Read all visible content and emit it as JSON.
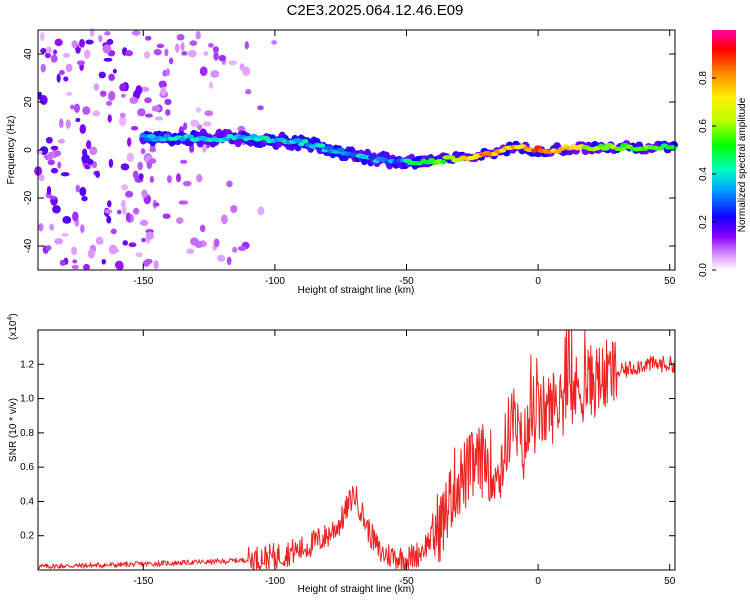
{
  "title": "C2E3.2025.064.12.46.E09",
  "chart_data": [
    {
      "type": "heatmap",
      "xlabel": "Height of straight line (km)",
      "ylabel": "Frequency (Hz)",
      "xlim": [
        -190,
        52
      ],
      "ylim": [
        -50,
        50
      ],
      "x_ticks": [
        -150,
        -100,
        -50,
        0,
        50
      ],
      "y_ticks": [
        -40,
        -20,
        0,
        20,
        40
      ],
      "colorbar": {
        "label": "Normalized spectral amplitude",
        "range": [
          0,
          1
        ],
        "ticks": [
          "0.0",
          "0.2",
          "0.4",
          "0.6",
          "0.8"
        ],
        "tick_values": [
          0.0,
          0.2,
          0.4,
          0.6,
          0.8
        ],
        "colors": [
          "#ffffff",
          "#cc55ff",
          "#5500ff",
          "#0000ff",
          "#00ccff",
          "#00ff66",
          "#99ff00",
          "#ffff00",
          "#ff8800",
          "#ff0000",
          "#ff00cc"
        ]
      },
      "ridge": {
        "x": [
          -150,
          -130,
          -110,
          -90,
          -70,
          -55,
          -45,
          -35,
          -20,
          -10,
          0,
          20,
          52
        ],
        "freq": [
          5,
          5,
          5,
          3,
          -2,
          -5,
          -5,
          -4,
          -2,
          1,
          0,
          1,
          1
        ],
        "amplitude": [
          0.35,
          0.4,
          0.4,
          0.38,
          0.35,
          0.3,
          0.45,
          0.6,
          0.8,
          0.75,
          0.85,
          0.6,
          0.5
        ]
      }
    },
    {
      "type": "line",
      "xlabel": "Height of straight line (km)",
      "ylabel": "SNR (10 * v/v)",
      "y_multiplier": "(x10",
      "y_multiplier_exp": "4",
      "y_multiplier_close": ")",
      "xlim": [
        -190,
        52
      ],
      "ylim": [
        0,
        1.4
      ],
      "x_ticks": [
        -150,
        -100,
        -50,
        0,
        50
      ],
      "y_ticks": [
        0.2,
        0.4,
        0.6,
        0.8,
        1.0,
        1.2
      ],
      "y_tick_labels": [
        "0.2",
        "0.4",
        "0.6",
        "0.8",
        "1.0",
        "1.2"
      ],
      "color": "#ee2222",
      "x": [
        -190,
        -160,
        -140,
        -120,
        -110,
        -100,
        -90,
        -80,
        -75,
        -72,
        -70,
        -68,
        -65,
        -60,
        -55,
        -50,
        -45,
        -40,
        -35,
        -32,
        -30,
        -28,
        -25,
        -20,
        -15,
        -12,
        -10,
        -8,
        -6,
        -3,
        0,
        5,
        10,
        15,
        20,
        25,
        30,
        40,
        52
      ],
      "y": [
        0.02,
        0.03,
        0.04,
        0.05,
        0.06,
        0.08,
        0.12,
        0.2,
        0.28,
        0.38,
        0.45,
        0.38,
        0.25,
        0.1,
        0.08,
        0.06,
        0.1,
        0.2,
        0.32,
        0.5,
        0.52,
        0.55,
        0.6,
        0.65,
        0.55,
        0.75,
        0.9,
        0.8,
        0.7,
        0.85,
        0.9,
        0.95,
        1.0,
        1.05,
        1.1,
        1.12,
        1.15,
        1.2,
        1.2
      ]
    }
  ]
}
